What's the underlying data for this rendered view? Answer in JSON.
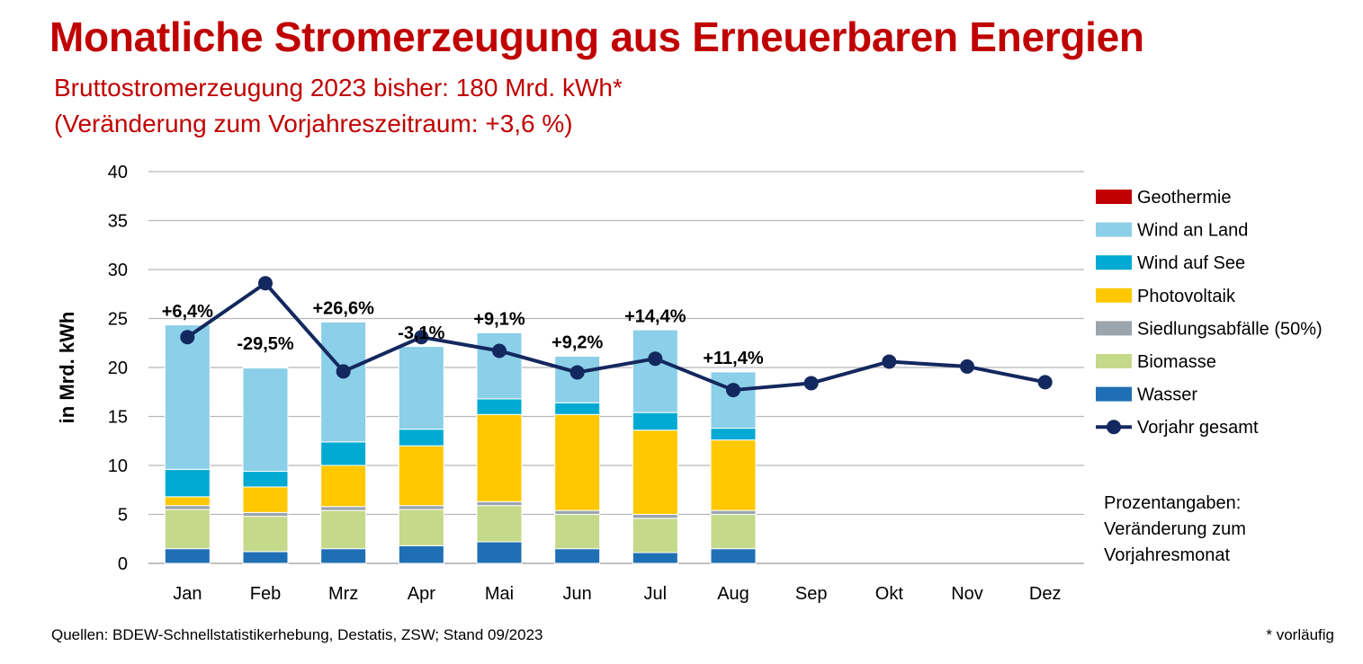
{
  "title": "Monatliche Stromerzeugung aus Erneuerbaren Energien",
  "subtitle_1": "Bruttostromerzeugung 2023 bisher: 180 Mrd. kWh*",
  "subtitle_2": "(Veränderung zum Vorjahreszeitraum: +3,6 %)",
  "note_lines": [
    "Prozentangaben:",
    "Veränderung zum",
    "Vorjahresmonat"
  ],
  "source": "Quellen: BDEW-Schnellstatistikerhebung, Destatis, ZSW; Stand 09/2023",
  "footnote": "* vorläufig",
  "chart_data": {
    "type": "bar",
    "stacked": true,
    "ylabel": "in Mrd. kWh",
    "ylim": [
      0,
      40
    ],
    "yticks": [
      0,
      5,
      10,
      15,
      20,
      25,
      30,
      35,
      40
    ],
    "grid": true,
    "legend_position": "right",
    "categories": [
      "Jan",
      "Feb",
      "Mrz",
      "Apr",
      "Mai",
      "Jun",
      "Jul",
      "Aug",
      "Sep",
      "Okt",
      "Nov",
      "Dez"
    ],
    "series": [
      {
        "name": "Wasser",
        "color": "#1f6fb4",
        "values": [
          1.5,
          1.2,
          1.5,
          1.8,
          2.2,
          1.5,
          1.1,
          1.5,
          null,
          null,
          null,
          null
        ]
      },
      {
        "name": "Biomasse",
        "color": "#c4d98a",
        "values": [
          4.0,
          3.6,
          3.9,
          3.7,
          3.7,
          3.5,
          3.5,
          3.5,
          null,
          null,
          null,
          null
        ]
      },
      {
        "name": "Siedlungsabfälle (50%)",
        "color": "#9aa5ad",
        "values": [
          0.4,
          0.4,
          0.4,
          0.4,
          0.4,
          0.4,
          0.4,
          0.4,
          null,
          null,
          null,
          null
        ]
      },
      {
        "name": "Photovoltaik",
        "color": "#ffc800",
        "values": [
          0.9,
          2.6,
          4.2,
          6.1,
          8.9,
          9.8,
          8.6,
          7.2,
          null,
          null,
          null,
          null
        ]
      },
      {
        "name": "Wind auf See",
        "color": "#00aad2",
        "values": [
          2.8,
          1.6,
          2.4,
          1.7,
          1.6,
          1.2,
          1.8,
          1.2,
          null,
          null,
          null,
          null
        ]
      },
      {
        "name": "Wind an Land",
        "color": "#8bcfe8",
        "values": [
          14.8,
          10.6,
          12.3,
          8.5,
          6.8,
          4.8,
          8.5,
          5.8,
          null,
          null,
          null,
          null
        ]
      },
      {
        "name": "Geothermie",
        "color": "#c00000",
        "values": [
          0.02,
          0.02,
          0.02,
          0.02,
          0.02,
          0.02,
          0.02,
          0.02,
          null,
          null,
          null,
          null
        ]
      }
    ],
    "line": {
      "name": "Vorjahr gesamt",
      "color": "#13285e",
      "values": [
        23.1,
        28.6,
        19.6,
        23.1,
        21.7,
        19.5,
        20.9,
        17.7,
        18.4,
        20.6,
        20.1,
        18.5
      ]
    },
    "bar_labels": [
      "+6,4%",
      "-29,5%",
      "+26,6%",
      "-3,1%",
      "+9,1%",
      "+9,2%",
      "+14,4%",
      "+11,4%",
      "",
      "",
      "",
      ""
    ],
    "legend_order": [
      "Geothermie",
      "Wind an Land",
      "Wind auf See",
      "Photovoltaik",
      "Siedlungsabfälle (50%)",
      "Biomasse",
      "Wasser",
      "Vorjahr gesamt"
    ]
  }
}
